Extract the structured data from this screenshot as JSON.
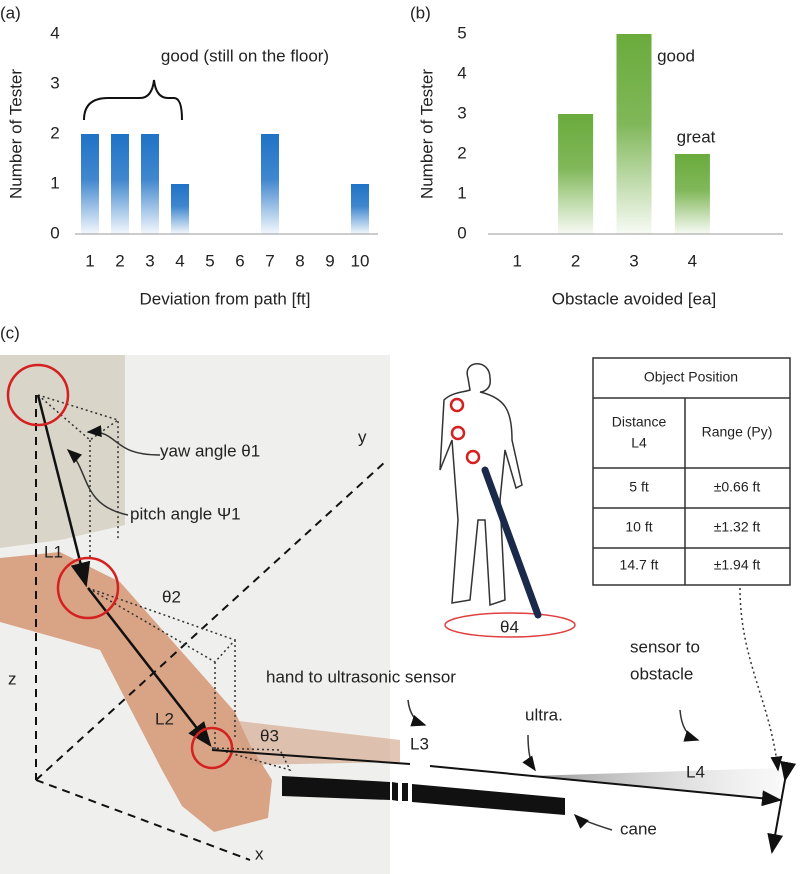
{
  "chart_data": [
    {
      "type": "bar",
      "panel_label": "(a)",
      "y_label": "Number of Tester",
      "x_label": "Deviation from path [ft]",
      "categories": [
        "1",
        "2",
        "3",
        "4",
        "5",
        "6",
        "7",
        "8",
        "9",
        "10"
      ],
      "values": [
        2,
        2,
        2,
        1,
        0,
        0,
        2,
        0,
        0,
        1
      ],
      "color": "#1f72c6",
      "ylim": [
        0,
        4
      ],
      "yticks": [
        0,
        1,
        2,
        3,
        4
      ],
      "annotations": [
        "good (still on the floor)"
      ]
    },
    {
      "type": "bar",
      "panel_label": "(b)",
      "y_label": "Number of Tester",
      "x_label": "Obstacle avoided [ea]",
      "categories": [
        "1",
        "2",
        "3",
        "4",
        null
      ],
      "values": [
        0,
        3,
        5,
        2,
        null
      ],
      "color": "#6aab3c",
      "ylim": [
        0,
        5
      ],
      "yticks": [
        0,
        1,
        2,
        3,
        4,
        5
      ],
      "annotations": [
        "good",
        "great"
      ]
    }
  ],
  "diagram": {
    "panel_label": "(c)",
    "labels": {
      "yaw": "yaw angle  θ1",
      "pitch": "pitch angle Ψ1",
      "y": "y",
      "x": "x",
      "z": "z",
      "L1": "L1",
      "L2": "L2",
      "L3": "L3",
      "L4": "L4",
      "theta2": "θ2",
      "theta3": "θ3",
      "theta4": "θ4",
      "hand": "hand to ultrasonic sensor",
      "ultra": "ultra.",
      "sensor": [
        "sensor to",
        "obstacle"
      ],
      "cane": "cane"
    },
    "table": {
      "title": "Object Position",
      "headers": [
        [
          "Distance",
          "L4"
        ],
        "Range (Py)"
      ],
      "rows": [
        [
          "5 ft",
          "±0.66 ft"
        ],
        [
          "10 ft",
          "±1.32 ft"
        ],
        [
          "14.7 ft",
          "±1.94 ft"
        ]
      ]
    }
  }
}
